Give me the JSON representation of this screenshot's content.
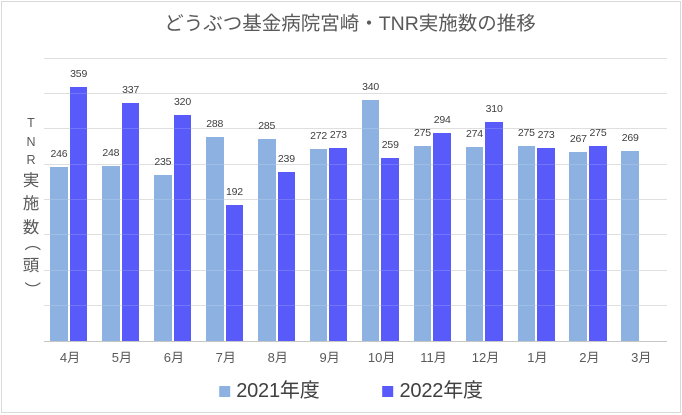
{
  "chart_data": {
    "type": "bar",
    "title": "どうぶつ基金病院宮崎・TNR実施数の推移",
    "ylabel": "TNR実施数（頭）",
    "xlabel": "",
    "categories": [
      "4月",
      "5月",
      "6月",
      "7月",
      "8月",
      "9月",
      "10月",
      "11月",
      "12月",
      "1月",
      "2月",
      "3月"
    ],
    "series": [
      {
        "name": "2021年度",
        "color": "#8DB2E2",
        "values": [
          246,
          248,
          235,
          288,
          285,
          272,
          340,
          275,
          274,
          275,
          267,
          269
        ]
      },
      {
        "name": "2022年度",
        "color": "#585AFA",
        "values": [
          359,
          337,
          320,
          192,
          239,
          273,
          259,
          294,
          310,
          273,
          275,
          null
        ]
      }
    ],
    "ylim": [
      0,
      400
    ],
    "gridline_step": 50,
    "grid": true,
    "y_tick_labels_visible": false,
    "value_labels_visible": true,
    "legend_position": "bottom",
    "colors": {
      "background": "#FFFFFF",
      "border": "#D9D9D9",
      "gridline": "#D9D9D9",
      "axis_line": "#C6C6C6",
      "title_text": "#595959",
      "axis_text": "#595959",
      "value_label_text": "#3E3E3E",
      "legend_text": "#404040"
    }
  }
}
